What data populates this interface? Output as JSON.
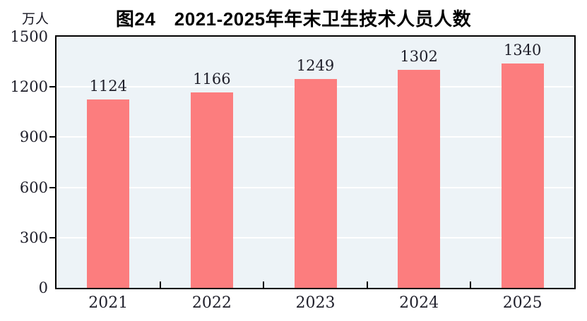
{
  "chart": {
    "title": "图24　2021-2025年年末卫生技术人员人数",
    "unit_label": "万人"
  },
  "chart_data": {
    "type": "bar",
    "title": "图24　2021-2025年年末卫生技术人员人数",
    "unit": "万人",
    "categories": [
      "2021",
      "2022",
      "2023",
      "2024",
      "2025"
    ],
    "values": [
      1124,
      1166,
      1249,
      1302,
      1340
    ],
    "xlabel": "",
    "ylabel": "万人",
    "ylim": [
      0,
      1500
    ],
    "yticks": [
      0,
      300,
      600,
      900,
      1200,
      1500
    ],
    "grid": true,
    "legend": "none",
    "colors": {
      "bar": "#FC7D7E",
      "plot_background": "#EDF3F7",
      "gridline": "#FFFFFF",
      "axis": "#000000",
      "tick_text": "#1F1F2A",
      "title_text": "#000000"
    }
  }
}
